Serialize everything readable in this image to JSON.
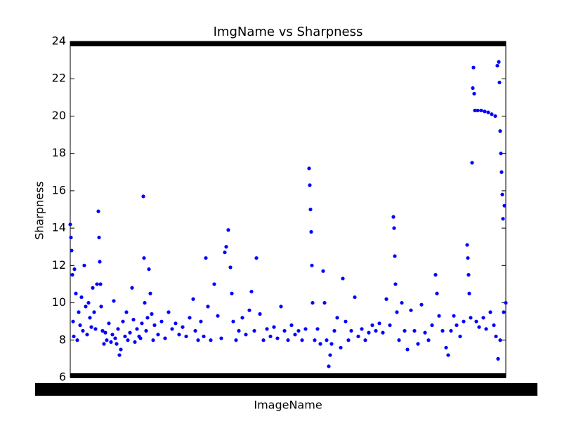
{
  "chart_data": {
    "type": "scatter",
    "title": "ImgName vs Sharpness",
    "x_label": "ImageName",
    "y_label": "Sharpness",
    "color": "#0000ff",
    "xlim": [
      0,
      620
    ],
    "ylim": [
      6,
      24
    ],
    "yticks": [
      6,
      8,
      10,
      12,
      14,
      16,
      18,
      20,
      22,
      24
    ],
    "series": [
      {
        "name": "Sharpness",
        "color": "#0000ff",
        "x": [
          0,
          1,
          2,
          3,
          4,
          5,
          6,
          8,
          10,
          12,
          14,
          16,
          18,
          20,
          22,
          24,
          26,
          28,
          30,
          32,
          34,
          36,
          38,
          40,
          41,
          42,
          43,
          44,
          46,
          48,
          50,
          52,
          55,
          58,
          60,
          62,
          64,
          66,
          68,
          70,
          72,
          75,
          78,
          80,
          82,
          85,
          88,
          90,
          92,
          95,
          98,
          100,
          102,
          104,
          105,
          106,
          108,
          110,
          112,
          114,
          116,
          118,
          120,
          125,
          130,
          135,
          140,
          145,
          150,
          155,
          160,
          165,
          170,
          175,
          178,
          182,
          186,
          190,
          193,
          196,
          200,
          205,
          210,
          215,
          220,
          222,
          225,
          228,
          230,
          232,
          236,
          240,
          245,
          250,
          255,
          258,
          262,
          265,
          270,
          275,
          280,
          285,
          290,
          295,
          300,
          305,
          310,
          315,
          320,
          325,
          330,
          335,
          340,
          341,
          342,
          343,
          344,
          345,
          348,
          352,
          356,
          360,
          362,
          365,
          368,
          370,
          372,
          376,
          380,
          385,
          388,
          392,
          396,
          400,
          405,
          410,
          415,
          420,
          425,
          430,
          435,
          440,
          445,
          450,
          455,
          460,
          461,
          462,
          463,
          465,
          468,
          472,
          476,
          480,
          485,
          490,
          495,
          500,
          505,
          510,
          515,
          520,
          522,
          525,
          530,
          535,
          538,
          542,
          546,
          550,
          555,
          560,
          565,
          566,
          567,
          568,
          570,
          572,
          573,
          574,
          575,
          576,
          580,
          585,
          590,
          595,
          600,
          605,
          608,
          610,
          611,
          612,
          613,
          614,
          615,
          616,
          618,
          620,
          578,
          582,
          588,
          592,
          598,
          603,
          606,
          609,
          612,
          617
        ],
        "values": [
          14.2,
          13.5,
          12.8,
          11.5,
          9.0,
          8.2,
          11.8,
          10.5,
          8.0,
          9.5,
          8.8,
          10.3,
          8.5,
          12.0,
          9.8,
          8.3,
          10.0,
          9.2,
          8.7,
          10.8,
          9.5,
          8.6,
          11.0,
          14.9,
          13.5,
          12.2,
          11.0,
          9.8,
          8.5,
          7.8,
          8.4,
          8.0,
          8.9,
          7.9,
          8.3,
          10.1,
          8.1,
          7.8,
          8.6,
          7.2,
          7.5,
          9.0,
          8.2,
          9.5,
          8.0,
          8.4,
          10.8,
          9.1,
          7.9,
          8.6,
          8.2,
          8.1,
          8.9,
          15.7,
          12.4,
          10.0,
          8.5,
          9.2,
          11.8,
          10.5,
          9.4,
          8.0,
          8.8,
          8.3,
          9.0,
          8.1,
          9.5,
          8.6,
          8.9,
          8.3,
          8.7,
          8.2,
          9.2,
          10.2,
          8.5,
          8.0,
          9.0,
          8.2,
          12.4,
          9.8,
          8.0,
          11.0,
          9.3,
          8.1,
          12.7,
          13.0,
          13.9,
          11.9,
          10.5,
          9.0,
          8.0,
          8.5,
          9.2,
          8.3,
          9.6,
          10.6,
          8.5,
          12.4,
          9.4,
          8.0,
          8.6,
          8.2,
          8.7,
          8.1,
          9.8,
          8.5,
          8.0,
          8.8,
          8.3,
          8.5,
          8.0,
          8.6,
          17.2,
          16.3,
          15.0,
          13.8,
          12.0,
          10.0,
          8.0,
          8.6,
          7.8,
          11.7,
          10.0,
          8.0,
          6.6,
          7.2,
          7.8,
          8.5,
          9.2,
          7.6,
          11.3,
          9.0,
          8.0,
          8.5,
          10.3,
          8.2,
          8.6,
          8.0,
          8.4,
          8.8,
          8.5,
          8.9,
          8.4,
          10.2,
          8.8,
          14.6,
          14.0,
          12.5,
          11.0,
          9.5,
          8.0,
          10.0,
          8.5,
          7.5,
          9.6,
          8.5,
          7.8,
          9.9,
          8.4,
          8.0,
          8.8,
          11.5,
          10.5,
          9.3,
          8.5,
          7.6,
          7.2,
          8.5,
          9.3,
          8.8,
          8.2,
          9.0,
          13.1,
          12.4,
          11.5,
          10.5,
          9.2,
          17.5,
          21.5,
          22.6,
          21.2,
          20.3,
          20.3,
          20.3,
          20.25,
          20.2,
          20.1,
          20.0,
          22.7,
          22.9,
          21.8,
          19.2,
          18.0,
          17.0,
          15.8,
          14.5,
          15.2,
          10.0,
          9.0,
          8.7,
          9.2,
          8.6,
          9.5,
          8.8,
          8.2,
          7.0,
          8.0,
          9.5
        ]
      }
    ]
  }
}
